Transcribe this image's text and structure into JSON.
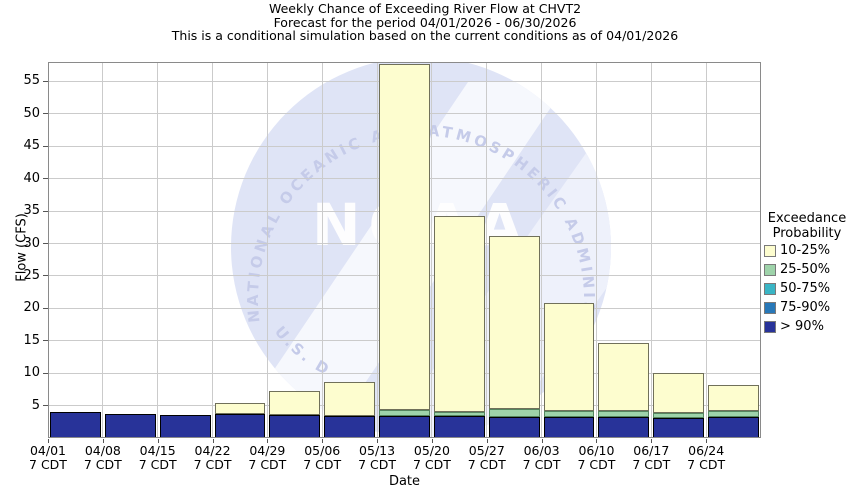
{
  "title": {
    "line1": "Weekly Chance of Exceeding River Flow at CHVT2",
    "line2": "Forecast for the period 04/01/2026 - 06/30/2026",
    "line3": "This is a conditional simulation based on the current conditions as of 04/01/2026"
  },
  "y_axis": {
    "label": "Flow (CFS)",
    "ticks": [
      5,
      10,
      15,
      20,
      25,
      30,
      35,
      40,
      45,
      50,
      55
    ],
    "min": 0,
    "max": 58
  },
  "x_axis": {
    "label": "Date",
    "sublabel": "7 CDT"
  },
  "legend": {
    "title_line1": "Exceedance",
    "title_line2": "Probability",
    "items": [
      {
        "label": "10-25%",
        "color": "#fdfdcf",
        "border": "#70705a"
      },
      {
        "label": "25-50%",
        "color": "#9ed3aa",
        "border": "#55855f"
      },
      {
        "label": "50-75%",
        "color": "#3ab5c5",
        "border": "#1f7580"
      },
      {
        "label": "75-90%",
        "color": "#2878b8",
        "border": "#14426e"
      },
      {
        "label": "> 90%",
        "color": "#283399",
        "border": "#000000"
      }
    ]
  },
  "watermark": {
    "letters": "NOAA",
    "arc_text_top": "NATIONAL OCEANIC AND ATMOSPHERIC ADMINISTRATION",
    "arc_text_bottom": "U.S. D",
    "circle_color": "#dfe4f6",
    "band_color": "#f6f8fd",
    "text_color": "#c5cbe9",
    "letter_color": "#ffffff"
  },
  "colors": {
    "gridline": "#cbcbcb",
    "plot_border": "#8a8a8a",
    "tick": "#555555"
  },
  "chart_data": {
    "type": "bar",
    "stacked": true,
    "title": "Weekly Chance of Exceeding River Flow at CHVT2",
    "xlabel": "Date",
    "ylabel": "Flow (CFS)",
    "ylim": [
      0,
      58
    ],
    "grid": true,
    "legend_position": "right",
    "note": "series values are cumulative stack tops in CFS, bottom band first; bands absent in a bar have the same cumulative top as the band below",
    "categories": [
      "04/01",
      "04/08",
      "04/15",
      "04/22",
      "04/29",
      "05/06",
      "05/13",
      "05/20",
      "05/27",
      "06/03",
      "06/10",
      "06/17",
      "06/24"
    ],
    "series": [
      {
        "name": "> 90%",
        "color": "#283399",
        "border": "#000000",
        "cumulative_tops_cfs": [
          4.0,
          3.7,
          3.5,
          3.7,
          3.6,
          3.4,
          3.4,
          3.4,
          3.2,
          3.3,
          3.3,
          3.1,
          3.2
        ]
      },
      {
        "name": "75-90%",
        "color": "#2878b8",
        "border": "#14426e",
        "cumulative_tops_cfs": [
          4.0,
          3.7,
          3.5,
          3.7,
          3.6,
          3.4,
          3.4,
          3.4,
          3.2,
          3.3,
          3.3,
          3.1,
          3.2
        ]
      },
      {
        "name": "50-75%",
        "color": "#3ab5c5",
        "border": "#1f7580",
        "cumulative_tops_cfs": [
          4.0,
          3.7,
          3.5,
          3.7,
          3.6,
          3.4,
          3.4,
          3.4,
          3.2,
          3.3,
          3.3,
          3.1,
          3.2
        ]
      },
      {
        "name": "25-50%",
        "color": "#9ed3aa",
        "border": "#55855f",
        "cumulative_tops_cfs": [
          4.0,
          3.7,
          3.5,
          3.7,
          3.6,
          3.4,
          4.3,
          4.0,
          4.5,
          4.2,
          4.1,
          3.9,
          4.1
        ]
      },
      {
        "name": "10-25%",
        "color": "#fdfdcf",
        "border": "#70705a",
        "cumulative_tops_cfs": [
          4.0,
          3.7,
          3.5,
          5.4,
          7.2,
          8.6,
          57.7,
          34.3,
          31.2,
          20.9,
          14.7,
          10.1,
          8.1
        ]
      }
    ]
  }
}
